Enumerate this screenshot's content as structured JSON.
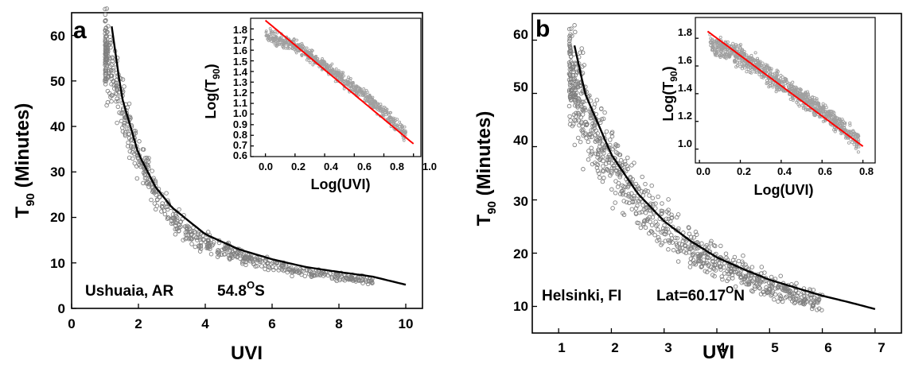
{
  "chart_data": [
    {
      "panel": "a",
      "type": "scatter",
      "xlabel": "UVI",
      "ylabel": "T90 (Minutes)",
      "ylabel_parts": {
        "main": "T",
        "sub": "90",
        "rest": " (Minutes)"
      },
      "xlim": [
        0,
        10.5
      ],
      "ylim": [
        0,
        65
      ],
      "xticks": [
        "0",
        "2",
        "4",
        "6",
        "8",
        "10"
      ],
      "yticks": [
        "0",
        "10",
        "20",
        "30",
        "40",
        "50",
        "60"
      ],
      "grid": false,
      "annotation": {
        "station": "Ushuaia, AR",
        "lat_value": "54.8",
        "lat_sup": "O",
        "lat_dir": "S"
      },
      "series": [
        {
          "kind": "scatter",
          "marker": "open-circle",
          "color": "#808080",
          "x": [
            1.0,
            1.3,
            1.6,
            2.0,
            2.5,
            3.0,
            3.5,
            4.0,
            5.0,
            6.0,
            7.0,
            8.0,
            9.0
          ],
          "y": [
            56,
            50,
            42,
            33,
            26,
            20,
            16.5,
            14.5,
            11.5,
            9.5,
            8,
            7,
            6
          ]
        },
        {
          "kind": "fit",
          "color": "#000000",
          "x": [
            1.2,
            1.5,
            2.0,
            2.5,
            3.0,
            4.0,
            5.0,
            6.0,
            7.0,
            8.0,
            9.0,
            10.0
          ],
          "y": [
            62,
            46.5,
            34,
            26.8,
            22.2,
            16.3,
            13,
            10.8,
            9.1,
            8,
            7,
            5.2
          ]
        }
      ],
      "inset": {
        "xlabel": "Log(UVI)",
        "ylabel": "Log(T90)",
        "ylabel_parts": {
          "main": "Log(T",
          "sub": "90",
          "rest": ")"
        },
        "xlim": [
          -0.1,
          1.05
        ],
        "ylim": [
          0.6,
          1.9
        ],
        "xticks": [
          "0.0",
          "0.2",
          "0.4",
          "0.6",
          "0.8",
          "1.0"
        ],
        "yticks": [
          "0.6",
          "0.7",
          "0.8",
          "0.9",
          "1.0",
          "1.1",
          "1.2",
          "1.3",
          "1.4",
          "1.5",
          "1.6",
          "1.7",
          "1.8"
        ],
        "series": [
          {
            "kind": "scatter",
            "marker": "open-circle",
            "color": "#a0a0a0",
            "x": [
              0.0,
              0.2,
              0.4,
              0.6,
              0.8,
              0.95
            ],
            "y": [
              1.74,
              1.65,
              1.45,
              1.25,
              1.02,
              0.8
            ]
          },
          {
            "kind": "fit",
            "color": "#ff0000",
            "x": [
              0.0,
              1.0
            ],
            "y": [
              1.88,
              0.72
            ]
          }
        ]
      }
    },
    {
      "panel": "b",
      "type": "scatter",
      "xlabel": "UVI",
      "ylabel": "T90 (Minutes)",
      "ylabel_parts": {
        "main": "T",
        "sub": "90",
        "rest": " (Minutes)"
      },
      "xlim": [
        0.5,
        7.5
      ],
      "ylim": [
        5,
        65
      ],
      "xticks": [
        "1",
        "2",
        "3",
        "4",
        "5",
        "6",
        "7"
      ],
      "yticks": [
        "10",
        "20",
        "30",
        "40",
        "50",
        "60"
      ],
      "grid": false,
      "annotation": {
        "station": "Helsinki, FI",
        "lat_prefix": "Lat=",
        "lat_value": "60.17",
        "lat_sup": "O",
        "lat_dir": "N"
      },
      "series": [
        {
          "kind": "scatter",
          "marker": "open-circle",
          "color": "#808080",
          "x": [
            1.2,
            1.5,
            1.8,
            2.0,
            2.5,
            3.0,
            3.5,
            4.0,
            4.5,
            5.0,
            5.5,
            6.0
          ],
          "y": [
            55,
            46,
            40,
            37,
            30,
            25,
            21,
            18.5,
            16,
            14,
            12.5,
            10.5
          ]
        },
        {
          "kind": "fit",
          "color": "#000000",
          "x": [
            1.3,
            1.5,
            2.0,
            2.5,
            3.0,
            3.5,
            4.0,
            4.5,
            5.0,
            5.5,
            6.0,
            6.5,
            7.0
          ],
          "y": [
            59,
            50,
            38.5,
            31.2,
            26,
            22.3,
            19.2,
            17,
            15,
            13.5,
            12,
            10.8,
            9.5
          ]
        }
      ],
      "inset": {
        "xlabel": "Log(UVI)",
        "ylabel": "Log(T90)",
        "ylabel_parts": {
          "main": "Log(T",
          "sub": "90",
          "rest": ")"
        },
        "xlim": [
          -0.02,
          0.86
        ],
        "ylim": [
          0.9,
          1.95
        ],
        "xticks": [
          "0.0",
          "0.2",
          "0.4",
          "0.6",
          "0.8"
        ],
        "yticks": [
          "1.0",
          "1.2",
          "1.4",
          "1.6",
          "1.8"
        ],
        "series": [
          {
            "kind": "scatter",
            "marker": "open-circle",
            "color": "#a0a0a0",
            "x": [
              0.05,
              0.2,
              0.35,
              0.5,
              0.65,
              0.78
            ],
            "y": [
              1.76,
              1.68,
              1.52,
              1.38,
              1.22,
              1.05
            ]
          },
          {
            "kind": "fit",
            "color": "#ff0000",
            "x": [
              0.04,
              0.8
            ],
            "y": [
              1.85,
              1.02
            ]
          }
        ]
      }
    }
  ]
}
